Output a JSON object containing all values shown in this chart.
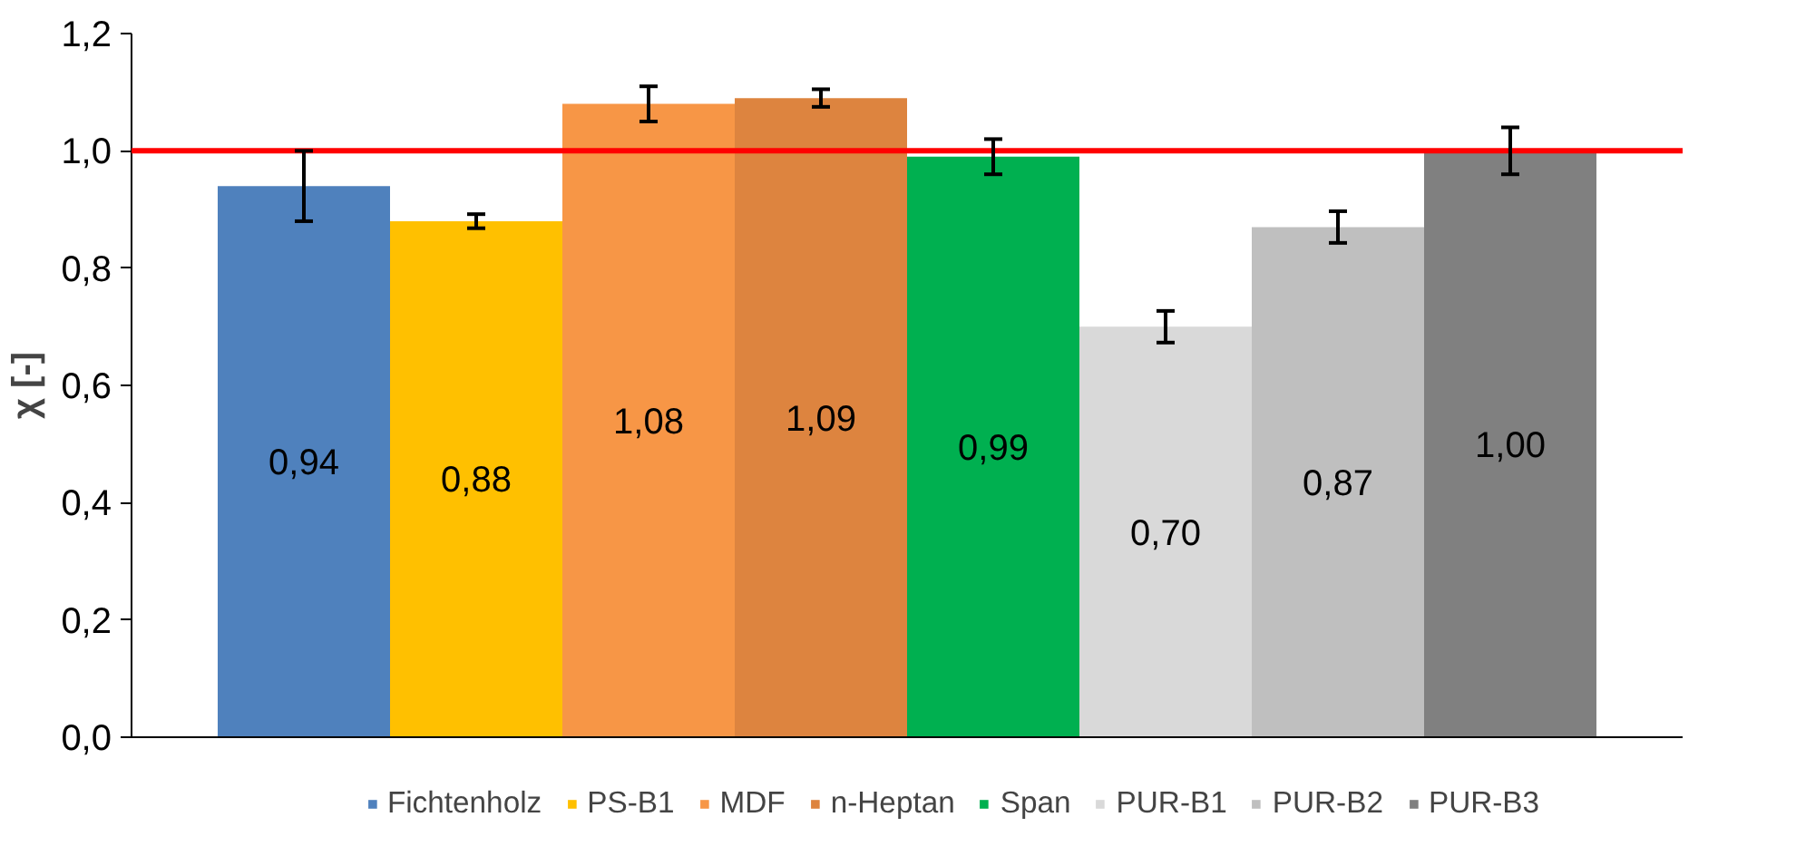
{
  "chart_data": {
    "type": "bar",
    "ylabel": "χ [-]",
    "categories": [
      null,
      null,
      null,
      null,
      null,
      null,
      null,
      null
    ],
    "series": [
      {
        "name": "Fichtenholz",
        "color": "#4f81bd",
        "values": [
          0.94,
          null,
          null,
          null,
          null,
          null,
          null,
          null
        ],
        "errors": [
          0.06,
          null,
          null,
          null,
          null,
          null,
          null,
          null
        ],
        "value_labels": [
          "0,94",
          null,
          null,
          null,
          null,
          null,
          null,
          null
        ]
      },
      {
        "name": "PS-B1",
        "color": "#ffc000",
        "values": [
          null,
          0.88,
          null,
          null,
          null,
          null,
          null,
          null
        ],
        "errors": [
          null,
          0.012,
          null,
          null,
          null,
          null,
          null,
          null
        ],
        "value_labels": [
          null,
          "0,88",
          null,
          null,
          null,
          null,
          null,
          null
        ]
      },
      {
        "name": "MDF",
        "color": "#f79646",
        "values": [
          null,
          null,
          1.08,
          null,
          null,
          null,
          null,
          null
        ],
        "errors": [
          null,
          null,
          0.03,
          null,
          null,
          null,
          null,
          null
        ],
        "value_labels": [
          null,
          null,
          "1,08",
          null,
          null,
          null,
          null,
          null
        ]
      },
      {
        "name": "n-Heptan",
        "color": "#dd843f",
        "values": [
          null,
          null,
          null,
          1.09,
          null,
          null,
          null,
          null
        ],
        "errors": [
          null,
          null,
          null,
          0.015,
          null,
          null,
          null,
          null
        ],
        "value_labels": [
          null,
          null,
          null,
          "1,09",
          null,
          null,
          null,
          null
        ]
      },
      {
        "name": "Span",
        "color": "#00b050",
        "values": [
          null,
          null,
          null,
          null,
          0.99,
          null,
          null,
          null
        ],
        "errors": [
          null,
          null,
          null,
          null,
          0.03,
          null,
          null,
          null
        ],
        "value_labels": [
          null,
          null,
          null,
          null,
          "0,99",
          null,
          null,
          null
        ]
      },
      {
        "name": "PUR-B1",
        "color": "#d9d9d9",
        "values": [
          null,
          null,
          null,
          null,
          null,
          0.7,
          null,
          null
        ],
        "errors": [
          null,
          null,
          null,
          null,
          null,
          0.027,
          null,
          null
        ],
        "value_labels": [
          null,
          null,
          null,
          null,
          null,
          "0,70",
          null,
          null
        ]
      },
      {
        "name": "PUR-B2",
        "color": "#bfbfbf",
        "values": [
          null,
          null,
          null,
          null,
          null,
          null,
          0.87,
          null
        ],
        "errors": [
          null,
          null,
          null,
          null,
          null,
          null,
          0.027,
          null
        ],
        "value_labels": [
          null,
          null,
          null,
          null,
          null,
          null,
          "0,87",
          null
        ]
      },
      {
        "name": "PUR-B3",
        "color": "#808080",
        "values": [
          null,
          null,
          null,
          null,
          null,
          null,
          null,
          1.0
        ],
        "errors": [
          null,
          null,
          null,
          null,
          null,
          null,
          null,
          0.04
        ],
        "value_labels": [
          null,
          null,
          null,
          null,
          null,
          null,
          null,
          "1,00"
        ]
      }
    ],
    "ylim": [
      0,
      1.2
    ],
    "yticks": [
      {
        "value": 0,
        "label": "0,0"
      },
      {
        "value": 0.2,
        "label": "0,2"
      },
      {
        "value": 0.4,
        "label": "0,4"
      },
      {
        "value": 0.6,
        "label": "0,6"
      },
      {
        "value": 0.8,
        "label": "0,8"
      },
      {
        "value": 1.0,
        "label": "1,0"
      },
      {
        "value": 1.2,
        "label": "1,2"
      }
    ],
    "ref_lines": [
      {
        "axis": "y",
        "value": 1.0,
        "color": "#ff0000"
      }
    ],
    "grid": false,
    "legend": "bottom",
    "tick_labels": "y"
  }
}
